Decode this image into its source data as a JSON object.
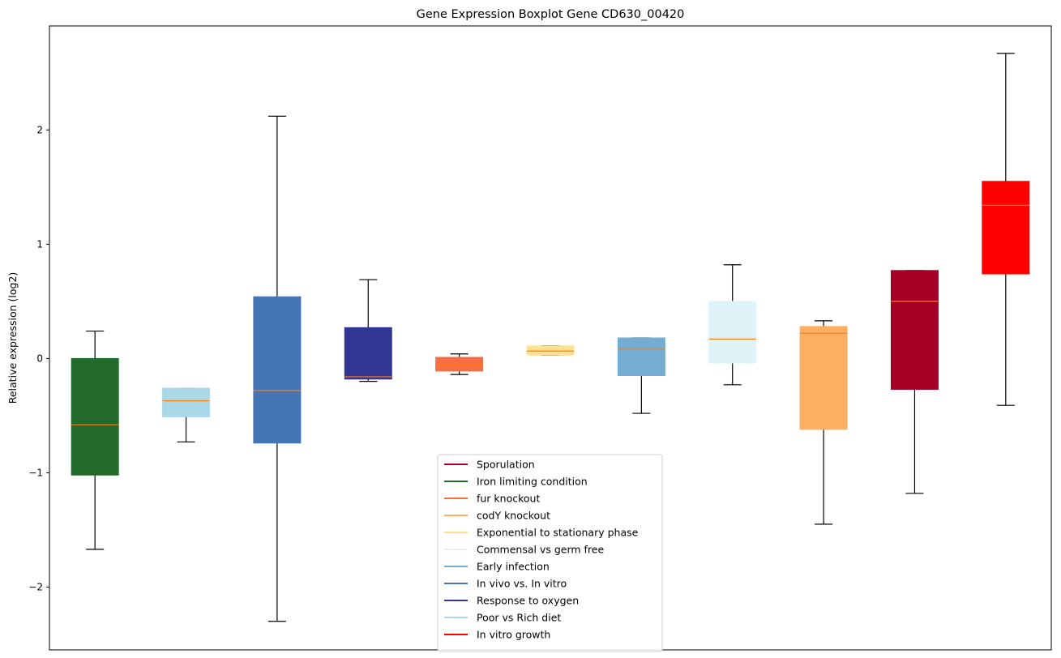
{
  "chart_data": {
    "type": "boxplot",
    "title": "Gene Expression Boxplot Gene CD630_00420",
    "xlabel": "",
    "ylabel": "Relative expression (log2)",
    "ylim": [
      -2.55,
      2.91
    ],
    "yticks": [
      -2,
      -1,
      0,
      1,
      2
    ],
    "ytick_labels": [
      "−2",
      "−1",
      "0",
      "1",
      "2"
    ],
    "grid": false,
    "legend_position": "lower-center",
    "median_color": "#ff7f0e",
    "series": [
      {
        "name": "Iron limiting condition",
        "color": "#226b2d",
        "whisker_low": -1.67,
        "q1": -1.02,
        "median": -0.58,
        "q3": 0.0,
        "whisker_high": 0.24
      },
      {
        "name": "Poor vs Rich diet",
        "color": "#abd9e9",
        "whisker_low": -0.73,
        "q1": -0.51,
        "median": -0.37,
        "q3": -0.26,
        "whisker_high": -0.26
      },
      {
        "name": "In vivo vs. In vitro",
        "color": "#4575b4",
        "whisker_low": -2.3,
        "q1": -0.74,
        "median": -0.28,
        "q3": 0.54,
        "whisker_high": 2.12
      },
      {
        "name": "Response to oxygen",
        "color": "#313695",
        "whisker_low": -0.2,
        "q1": -0.18,
        "median": -0.16,
        "q3": 0.27,
        "whisker_high": 0.69
      },
      {
        "name": "fur knockout",
        "color": "#f46d43",
        "whisker_low": -0.14,
        "q1": -0.11,
        "median": -0.06,
        "q3": 0.01,
        "whisker_high": 0.04
      },
      {
        "name": "Exponential to stationary phase",
        "color": "#fee090",
        "whisker_low": 0.03,
        "q1": 0.03,
        "median": 0.065,
        "q3": 0.11,
        "whisker_high": 0.11
      },
      {
        "name": "Early infection",
        "color": "#74add1",
        "whisker_low": -0.48,
        "q1": -0.15,
        "median": 0.08,
        "q3": 0.18,
        "whisker_high": 0.18
      },
      {
        "name": "Commensal vs germ free",
        "color": "#e0f3f8",
        "whisker_low": -0.23,
        "q1": -0.04,
        "median": 0.17,
        "q3": 0.5,
        "whisker_high": 0.82
      },
      {
        "name": "codY knockout",
        "color": "#fdae61",
        "whisker_low": -1.45,
        "q1": -0.62,
        "median": 0.22,
        "q3": 0.28,
        "whisker_high": 0.33
      },
      {
        "name": "Sporulation",
        "color": "#a50026",
        "whisker_low": -1.18,
        "q1": -0.27,
        "median": 0.5,
        "q3": 0.77,
        "whisker_high": 0.77
      },
      {
        "name": "In vitro growth",
        "color": "#ff0000",
        "whisker_low": -0.41,
        "q1": 0.74,
        "median": 1.34,
        "q3": 1.55,
        "whisker_high": 2.67
      }
    ],
    "legend": [
      {
        "label": "Sporulation",
        "color": "#a50026"
      },
      {
        "label": "Iron limiting condition",
        "color": "#226b2d"
      },
      {
        "label": "fur knockout",
        "color": "#f46d43"
      },
      {
        "label": "codY knockout",
        "color": "#fdae61"
      },
      {
        "label": "Exponential to stationary phase",
        "color": "#fee090"
      },
      {
        "label": "Commensal vs germ free",
        "color": "#e0f3f8"
      },
      {
        "label": "Early infection",
        "color": "#74add1"
      },
      {
        "label": "In vivo vs. In vitro",
        "color": "#4575b4"
      },
      {
        "label": "Response to oxygen",
        "color": "#313695"
      },
      {
        "label": "Poor vs Rich diet",
        "color": "#abd9e9"
      },
      {
        "label": "In vitro growth",
        "color": "#ff0000"
      }
    ]
  }
}
